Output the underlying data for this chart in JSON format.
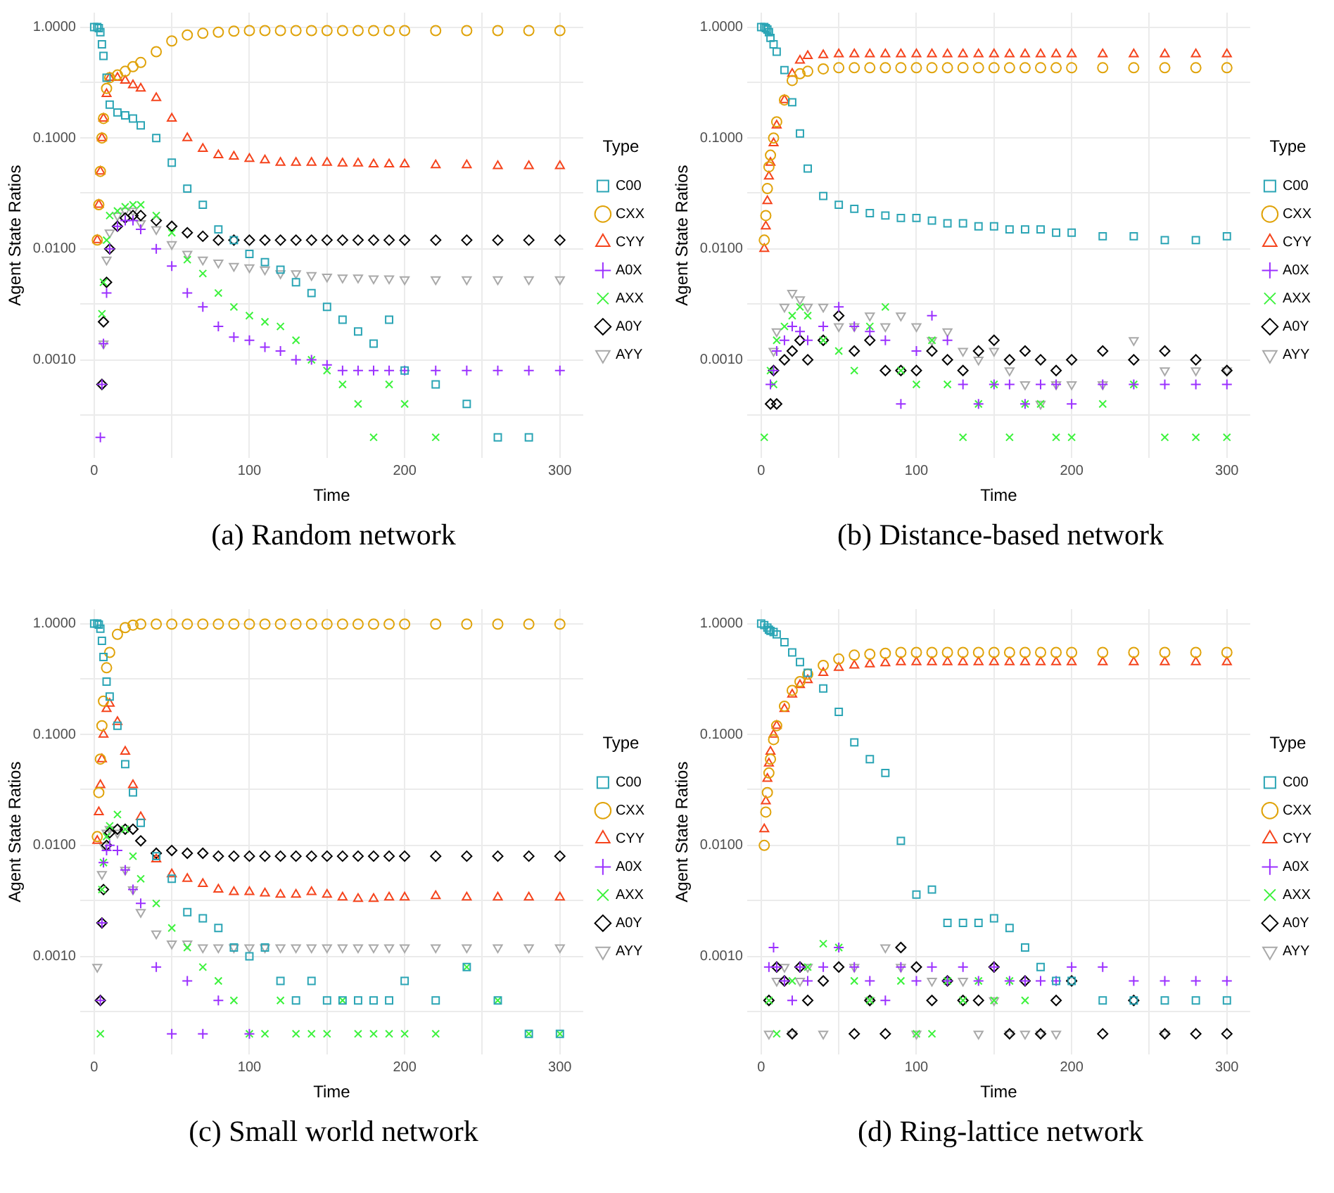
{
  "chart_data": [
    {
      "type": "scatter",
      "title": "(a) Random network",
      "xlabel": "Time",
      "ylabel": "Agent State Ratios",
      "legend_title": "Type",
      "legend": "right",
      "grid": true,
      "log": "y",
      "x": [
        0,
        2,
        3,
        4,
        5,
        6,
        8,
        10,
        15,
        20,
        25,
        30,
        40,
        50,
        60,
        70,
        80,
        90,
        100,
        110,
        120,
        130,
        140,
        150,
        160,
        170,
        180,
        190,
        200,
        220,
        240,
        260,
        280,
        300
      ],
      "xlim": [
        -9,
        315
      ],
      "xticks": [
        0,
        {
          "value": 50,
          "label": null
        },
        100,
        {
          "value": 150,
          "label": null
        },
        200,
        {
          "value": 250,
          "label": null
        },
        300
      ],
      "ylim": [
        0.00013,
        1.35
      ],
      "yticks": [
        {
          "value": 0.00032,
          "label": null
        },
        {
          "value": 0.001,
          "label": "0.0010"
        },
        {
          "value": 0.0032,
          "label": null
        },
        {
          "value": 0.01,
          "label": "0.0100"
        },
        {
          "value": 0.032,
          "label": null
        },
        {
          "value": 0.1,
          "label": "0.1000"
        },
        {
          "value": 0.32,
          "label": null
        },
        {
          "value": 1,
          "label": "1.0000"
        }
      ],
      "series": [
        {
          "name": "C00",
          "color": "#2ba5b5",
          "marker": "square",
          "values": [
            1,
            1,
            0.98,
            0.9,
            0.7,
            0.55,
            0.35,
            0.2,
            0.17,
            0.16,
            0.15,
            0.13,
            0.1,
            0.06,
            0.035,
            0.025,
            0.015,
            0.012,
            0.009,
            0.0076,
            0.0065,
            0.005,
            0.004,
            0.003,
            0.0023,
            0.0018,
            0.0014,
            0.0023,
            0.0008,
            0.0006,
            0.0004,
            0.0002,
            0.0002,
            null
          ]
        },
        {
          "name": "CXX",
          "color": "#e0a30a",
          "marker": "circle",
          "values": [
            null,
            0.012,
            0.025,
            0.05,
            0.1,
            0.15,
            0.28,
            0.35,
            0.37,
            0.4,
            0.44,
            0.48,
            0.6,
            0.75,
            0.85,
            0.88,
            0.9,
            0.92,
            0.93,
            0.93,
            0.93,
            0.93,
            0.93,
            0.93,
            0.93,
            0.93,
            0.93,
            0.93,
            0.93,
            0.93,
            0.93,
            0.93,
            0.93,
            0.93
          ]
        },
        {
          "name": "CYY",
          "color": "#f5441d",
          "marker": "triangle",
          "values": [
            null,
            0.012,
            0.025,
            0.05,
            0.1,
            0.15,
            0.25,
            0.35,
            0.35,
            0.33,
            0.3,
            0.28,
            0.23,
            0.15,
            0.1,
            0.08,
            0.07,
            0.068,
            0.065,
            0.063,
            0.06,
            0.06,
            0.06,
            0.06,
            0.059,
            0.059,
            0.058,
            0.058,
            0.058,
            0.057,
            0.057,
            0.056,
            0.056,
            0.056
          ]
        },
        {
          "name": "A0X",
          "color": "#9b30ff",
          "marker": "cross",
          "values": [
            null,
            null,
            null,
            0.0002,
            0.0006,
            0.0014,
            0.004,
            0.01,
            0.016,
            0.018,
            0.018,
            0.015,
            0.01,
            0.007,
            0.004,
            0.003,
            0.002,
            0.0016,
            0.0015,
            0.0013,
            0.0012,
            0.001,
            0.001,
            0.0009,
            0.0008,
            0.0008,
            0.0008,
            0.0008,
            0.0008,
            0.0008,
            0.0008,
            0.0008,
            0.0008,
            0.0008
          ]
        },
        {
          "name": "AXX",
          "color": "#3df23d",
          "marker": "x",
          "values": [
            null,
            null,
            null,
            null,
            0.0026,
            0.005,
            0.012,
            0.02,
            0.022,
            0.024,
            0.025,
            0.025,
            0.02,
            0.014,
            0.008,
            0.006,
            0.004,
            0.003,
            0.0025,
            0.0022,
            0.002,
            0.0015,
            0.001,
            0.0008,
            0.0006,
            0.0004,
            0.0002,
            0.0006,
            0.0004,
            0.0002,
            null,
            null,
            null,
            null
          ]
        },
        {
          "name": "A0Y",
          "color": "#000000",
          "marker": "diamond",
          "values": [
            null,
            null,
            null,
            null,
            0.0006,
            0.0022,
            0.005,
            0.01,
            0.016,
            0.019,
            0.02,
            0.02,
            0.018,
            0.016,
            0.014,
            0.013,
            0.012,
            0.012,
            0.012,
            0.012,
            0.012,
            0.012,
            0.012,
            0.012,
            0.012,
            0.012,
            0.012,
            0.012,
            0.012,
            0.012,
            0.012,
            0.012,
            0.012,
            0.012
          ]
        },
        {
          "name": "AYY",
          "color": "#a9a9a9",
          "marker": "triangle-down",
          "values": [
            null,
            null,
            null,
            null,
            null,
            0.0014,
            0.008,
            0.014,
            0.02,
            0.022,
            0.022,
            0.017,
            0.015,
            0.011,
            0.009,
            0.008,
            0.0075,
            0.007,
            0.0068,
            0.0065,
            0.006,
            0.006,
            0.0058,
            0.0056,
            0.0055,
            0.0055,
            0.0054,
            0.0054,
            0.0053,
            0.0053,
            0.0053,
            0.0053,
            0.0053,
            0.0053
          ]
        }
      ]
    },
    {
      "type": "scatter",
      "title": "(b) Distance-based network",
      "xlabel": "Time",
      "ylabel": "Agent State Ratios",
      "legend_title": "Type",
      "legend": "right",
      "grid": true,
      "log": "y",
      "x": [
        0,
        2,
        3,
        4,
        5,
        6,
        8,
        10,
        15,
        20,
        25,
        30,
        40,
        50,
        60,
        70,
        80,
        90,
        100,
        110,
        120,
        130,
        140,
        150,
        160,
        170,
        180,
        190,
        200,
        220,
        240,
        260,
        280,
        300
      ],
      "xlim": [
        -9,
        315
      ],
      "xticks": [
        0,
        {
          "value": 50,
          "label": null
        },
        100,
        {
          "value": 150,
          "label": null
        },
        200,
        {
          "value": 250,
          "label": null
        },
        300
      ],
      "ylim": [
        0.00013,
        1.35
      ],
      "yticks": [
        {
          "value": 0.00032,
          "label": null
        },
        {
          "value": 0.001,
          "label": "0.0010"
        },
        {
          "value": 0.0032,
          "label": null
        },
        {
          "value": 0.01,
          "label": "0.0100"
        },
        {
          "value": 0.032,
          "label": null
        },
        {
          "value": 0.1,
          "label": "0.1000"
        },
        {
          "value": 0.32,
          "label": null
        },
        {
          "value": 1,
          "label": "1.0000"
        }
      ],
      "series": [
        {
          "name": "C00",
          "color": "#2ba5b5",
          "marker": "square",
          "values": [
            1,
            1,
            0.98,
            0.95,
            0.9,
            0.8,
            0.7,
            0.6,
            0.41,
            0.21,
            0.11,
            0.053,
            0.03,
            0.025,
            0.023,
            0.021,
            0.02,
            0.019,
            0.019,
            0.018,
            0.017,
            0.017,
            0.016,
            0.016,
            0.015,
            0.015,
            0.015,
            0.014,
            0.014,
            0.013,
            0.013,
            0.012,
            0.012,
            0.013
          ]
        },
        {
          "name": "CXX",
          "color": "#e0a30a",
          "marker": "circle",
          "values": [
            null,
            0.012,
            0.02,
            0.035,
            0.055,
            0.07,
            0.1,
            0.14,
            0.22,
            0.33,
            0.38,
            0.4,
            0.42,
            0.43,
            0.43,
            0.43,
            0.43,
            0.43,
            0.43,
            0.43,
            0.43,
            0.43,
            0.43,
            0.43,
            0.43,
            0.43,
            0.43,
            0.43,
            0.43,
            0.43,
            0.43,
            0.43,
            0.43,
            0.43
          ]
        },
        {
          "name": "CYY",
          "color": "#f5441d",
          "marker": "triangle",
          "values": [
            null,
            0.01,
            0.016,
            0.027,
            0.045,
            0.06,
            0.09,
            0.13,
            0.22,
            0.38,
            0.5,
            0.55,
            0.56,
            0.57,
            0.57,
            0.57,
            0.57,
            0.57,
            0.57,
            0.57,
            0.57,
            0.57,
            0.57,
            0.57,
            0.57,
            0.57,
            0.57,
            0.57,
            0.57,
            0.57,
            0.57,
            0.57,
            0.57,
            0.57
          ]
        },
        {
          "name": "A0X",
          "color": "#9b30ff",
          "marker": "cross",
          "values": [
            null,
            null,
            null,
            null,
            null,
            0.0006,
            0.0008,
            0.0012,
            0.0015,
            0.002,
            0.0018,
            0.0015,
            0.002,
            0.003,
            0.002,
            0.0018,
            0.0015,
            0.0004,
            0.0012,
            0.0025,
            0.0015,
            0.0006,
            0.0004,
            0.0006,
            0.0006,
            0.0004,
            0.0006,
            0.0006,
            0.0004,
            0.0006,
            0.0006,
            0.0006,
            0.0006,
            0.0006
          ]
        },
        {
          "name": "AXX",
          "color": "#3df23d",
          "marker": "x",
          "values": [
            null,
            0.0002,
            null,
            null,
            null,
            0.0008,
            0.0006,
            0.0015,
            0.002,
            0.0025,
            0.003,
            0.0025,
            0.0015,
            0.0012,
            0.0008,
            0.002,
            0.003,
            0.0008,
            0.0006,
            0.0015,
            0.0006,
            0.0002,
            0.0004,
            0.0006,
            0.0002,
            0.0004,
            0.0004,
            0.0002,
            0.0002,
            0.0004,
            0.0006,
            0.0002,
            0.0002,
            0.0002
          ]
        },
        {
          "name": "A0Y",
          "color": "#000000",
          "marker": "diamond",
          "values": [
            null,
            null,
            null,
            null,
            null,
            0.0004,
            0.0008,
            0.0004,
            0.001,
            0.0012,
            0.0015,
            0.001,
            0.0015,
            0.0025,
            0.0012,
            0.0015,
            0.0008,
            0.0008,
            0.0008,
            0.0012,
            0.001,
            0.0008,
            0.0012,
            0.0015,
            0.001,
            0.0012,
            0.001,
            0.0008,
            0.001,
            0.0012,
            0.001,
            0.0012,
            0.001,
            0.0008
          ]
        },
        {
          "name": "AYY",
          "color": "#a9a9a9",
          "marker": "triangle-down",
          "values": [
            null,
            null,
            null,
            null,
            null,
            null,
            0.0012,
            0.0018,
            0.003,
            0.004,
            0.0035,
            0.003,
            0.003,
            0.002,
            0.002,
            0.0025,
            0.002,
            0.0025,
            0.002,
            0.0015,
            0.0018,
            0.0012,
            0.001,
            0.0012,
            0.0008,
            0.0006,
            0.0004,
            0.0006,
            0.0006,
            0.0006,
            0.0015,
            0.0008,
            0.0008,
            0.0008
          ]
        }
      ]
    },
    {
      "type": "scatter",
      "title": "(c) Small world network",
      "xlabel": "Time",
      "ylabel": "Agent State Ratios",
      "legend_title": "Type",
      "legend": "right",
      "grid": true,
      "log": "y",
      "x": [
        0,
        2,
        3,
        4,
        5,
        6,
        8,
        10,
        15,
        20,
        25,
        30,
        40,
        50,
        60,
        70,
        80,
        90,
        100,
        110,
        120,
        130,
        140,
        150,
        160,
        170,
        180,
        190,
        200,
        220,
        240,
        260,
        280,
        300
      ],
      "xlim": [
        -9,
        315
      ],
      "xticks": [
        0,
        {
          "value": 50,
          "label": null
        },
        100,
        {
          "value": 150,
          "label": null
        },
        200,
        {
          "value": 250,
          "label": null
        },
        300
      ],
      "ylim": [
        0.00013,
        1.35
      ],
      "yticks": [
        {
          "value": 0.00032,
          "label": null
        },
        {
          "value": 0.001,
          "label": "0.0010"
        },
        {
          "value": 0.0032,
          "label": null
        },
        {
          "value": 0.01,
          "label": "0.0100"
        },
        {
          "value": 0.032,
          "label": null
        },
        {
          "value": 0.1,
          "label": "0.1000"
        },
        {
          "value": 0.32,
          "label": null
        },
        {
          "value": 1,
          "label": "1.0000"
        }
      ],
      "series": [
        {
          "name": "C00",
          "color": "#2ba5b5",
          "marker": "square",
          "values": [
            1,
            1,
            0.98,
            0.9,
            0.7,
            0.5,
            0.3,
            0.22,
            0.12,
            0.054,
            0.03,
            0.016,
            0.008,
            0.005,
            0.0025,
            0.0022,
            0.0018,
            0.0012,
            0.001,
            0.0012,
            0.0006,
            0.0004,
            0.0006,
            0.0004,
            0.0004,
            0.0004,
            0.0004,
            0.0004,
            0.0006,
            0.0004,
            0.0008,
            0.0004,
            0.0002,
            0.0002
          ]
        },
        {
          "name": "CXX",
          "color": "#e0a30a",
          "marker": "circle",
          "values": [
            null,
            0.012,
            0.03,
            0.06,
            0.12,
            0.2,
            0.4,
            0.55,
            0.8,
            0.92,
            0.97,
            0.99,
            0.99,
            0.99,
            0.99,
            0.99,
            0.99,
            0.99,
            0.99,
            0.99,
            0.99,
            0.99,
            0.99,
            0.99,
            0.99,
            0.99,
            0.99,
            0.99,
            0.99,
            0.99,
            0.99,
            0.99,
            0.99,
            0.99
          ]
        },
        {
          "name": "CYY",
          "color": "#f5441d",
          "marker": "triangle",
          "values": [
            null,
            0.011,
            0.02,
            0.035,
            0.06,
            0.1,
            0.17,
            0.19,
            0.13,
            0.07,
            0.035,
            0.018,
            0.0075,
            0.0055,
            0.005,
            0.0045,
            0.004,
            0.0038,
            0.0038,
            0.0037,
            0.0036,
            0.0036,
            0.0038,
            0.0036,
            0.0034,
            0.0033,
            0.0033,
            0.0034,
            0.0034,
            0.0035,
            0.0034,
            0.0034,
            0.0034,
            0.0034
          ]
        },
        {
          "name": "A0X",
          "color": "#9b30ff",
          "marker": "cross",
          "values": [
            null,
            null,
            null,
            0.0004,
            0.002,
            0.007,
            0.009,
            0.01,
            0.009,
            0.006,
            0.004,
            0.003,
            0.0008,
            0.0002,
            0.0006,
            0.0002,
            0.0004,
            null,
            0.0002,
            null,
            null,
            null,
            null,
            null,
            null,
            null,
            null,
            null,
            null,
            null,
            null,
            null,
            null,
            null
          ]
        },
        {
          "name": "AXX",
          "color": "#3df23d",
          "marker": "x",
          "values": [
            null,
            null,
            null,
            0.0002,
            0.004,
            0.007,
            0.012,
            0.015,
            0.019,
            0.014,
            0.008,
            0.005,
            0.003,
            0.0018,
            0.0012,
            0.0008,
            0.0006,
            0.0004,
            0.0002,
            0.0002,
            0.0004,
            0.0002,
            0.0002,
            0.0002,
            0.0004,
            0.0002,
            0.0002,
            0.0002,
            0.0002,
            0.0002,
            0.0008,
            0.0004,
            0.0002,
            0.0002
          ]
        },
        {
          "name": "A0Y",
          "color": "#000000",
          "marker": "diamond",
          "values": [
            null,
            null,
            null,
            0.0004,
            0.002,
            0.004,
            0.01,
            0.013,
            0.014,
            0.014,
            0.014,
            0.011,
            0.0085,
            0.009,
            0.0085,
            0.0085,
            0.008,
            0.008,
            0.008,
            0.008,
            0.008,
            0.008,
            0.008,
            0.008,
            0.008,
            0.008,
            0.008,
            0.008,
            0.008,
            0.008,
            0.008,
            0.008,
            0.008,
            0.008
          ]
        },
        {
          "name": "AYY",
          "color": "#a9a9a9",
          "marker": "triangle-down",
          "values": [
            null,
            0.0008,
            null,
            null,
            0.0055,
            0.01,
            0.013,
            0.014,
            0.013,
            0.006,
            0.004,
            0.0025,
            0.0016,
            0.0013,
            0.0013,
            0.0012,
            0.0012,
            0.0012,
            0.0012,
            0.0012,
            0.0012,
            0.0012,
            0.0012,
            0.0012,
            0.0012,
            0.0012,
            0.0012,
            0.0012,
            0.0012,
            0.0012,
            0.0012,
            0.0012,
            0.0012,
            0.0012
          ]
        }
      ]
    },
    {
      "type": "scatter",
      "title": "(d) Ring-lattice network",
      "xlabel": "Time",
      "ylabel": "Agent State Ratios",
      "legend_title": "Type",
      "legend": "right",
      "grid": true,
      "log": "y",
      "x": [
        0,
        2,
        3,
        4,
        5,
        6,
        8,
        10,
        15,
        20,
        25,
        30,
        40,
        50,
        60,
        70,
        80,
        90,
        100,
        110,
        120,
        130,
        140,
        150,
        160,
        170,
        180,
        190,
        200,
        220,
        240,
        260,
        280,
        300
      ],
      "xlim": [
        -9,
        315
      ],
      "xticks": [
        0,
        {
          "value": 50,
          "label": null
        },
        100,
        {
          "value": 150,
          "label": null
        },
        200,
        {
          "value": 250,
          "label": null
        },
        300
      ],
      "ylim": [
        0.00013,
        1.35
      ],
      "yticks": [
        {
          "value": 0.00032,
          "label": null
        },
        {
          "value": 0.001,
          "label": "0.0010"
        },
        {
          "value": 0.0032,
          "label": null
        },
        {
          "value": 0.01,
          "label": "0.0100"
        },
        {
          "value": 0.032,
          "label": null
        },
        {
          "value": 0.1,
          "label": "0.1000"
        },
        {
          "value": 0.32,
          "label": null
        },
        {
          "value": 1,
          "label": "1.0000"
        }
      ],
      "series": [
        {
          "name": "C00",
          "color": "#2ba5b5",
          "marker": "square",
          "values": [
            1,
            0.97,
            null,
            0.92,
            0.88,
            0.86,
            0.84,
            0.8,
            0.68,
            0.55,
            0.45,
            0.36,
            0.26,
            0.16,
            0.085,
            0.06,
            0.045,
            0.011,
            0.0036,
            0.004,
            0.002,
            0.002,
            0.002,
            0.0022,
            0.0018,
            0.0012,
            0.0008,
            0.0006,
            0.0006,
            0.0004,
            0.0004,
            0.0004,
            0.0004,
            0.0004
          ]
        },
        {
          "name": "CXX",
          "color": "#e0a30a",
          "marker": "circle",
          "values": [
            null,
            0.01,
            0.02,
            0.03,
            0.045,
            0.06,
            0.09,
            0.12,
            0.18,
            0.25,
            0.3,
            0.35,
            0.42,
            0.48,
            0.52,
            0.53,
            0.54,
            0.55,
            0.55,
            0.55,
            0.55,
            0.55,
            0.55,
            0.55,
            0.55,
            0.55,
            0.55,
            0.55,
            0.55,
            0.55,
            0.55,
            0.55,
            0.55,
            0.55
          ]
        },
        {
          "name": "CYY",
          "color": "#f5441d",
          "marker": "triangle",
          "values": [
            null,
            0.014,
            0.025,
            0.04,
            0.055,
            0.07,
            0.1,
            0.12,
            0.17,
            0.23,
            0.28,
            0.31,
            0.36,
            0.4,
            0.42,
            0.43,
            0.44,
            0.45,
            0.45,
            0.45,
            0.45,
            0.45,
            0.45,
            0.45,
            0.45,
            0.45,
            0.45,
            0.45,
            0.45,
            0.45,
            0.45,
            0.45,
            0.45,
            0.45
          ]
        },
        {
          "name": "A0X",
          "color": "#9b30ff",
          "marker": "cross",
          "values": [
            null,
            null,
            null,
            null,
            0.0008,
            null,
            0.0012,
            0.0008,
            0.0006,
            0.0004,
            0.0008,
            0.0006,
            0.0008,
            0.0012,
            0.0008,
            0.0006,
            0.0004,
            0.0008,
            0.0006,
            0.0008,
            0.0006,
            0.0008,
            0.0006,
            0.0008,
            0.0006,
            0.0006,
            0.0006,
            0.0006,
            0.0008,
            0.0008,
            0.0006,
            0.0006,
            0.0006,
            0.0006
          ]
        },
        {
          "name": "AXX",
          "color": "#3df23d",
          "marker": "x",
          "values": [
            null,
            null,
            null,
            null,
            0.0004,
            null,
            null,
            0.0002,
            null,
            0.0006,
            null,
            0.0008,
            0.0013,
            0.0012,
            0.0006,
            0.0004,
            null,
            0.0006,
            0.0002,
            0.0002,
            0.0006,
            0.0004,
            0.0006,
            0.0004,
            0.0006,
            0.0004,
            null,
            null,
            null,
            null,
            null,
            null,
            null,
            null
          ]
        },
        {
          "name": "A0Y",
          "color": "#000000",
          "marker": "diamond",
          "values": [
            null,
            null,
            null,
            null,
            0.0004,
            null,
            null,
            0.0008,
            0.0006,
            0.0002,
            0.0008,
            0.0004,
            0.0006,
            0.0008,
            0.0002,
            0.0004,
            0.0002,
            0.0012,
            0.0008,
            0.0004,
            0.0006,
            0.0004,
            0.0004,
            0.0008,
            0.0002,
            0.0006,
            0.0002,
            0.0004,
            0.0006,
            0.0002,
            0.0004,
            0.0002,
            0.0002,
            0.0002
          ]
        },
        {
          "name": "AYY",
          "color": "#a9a9a9",
          "marker": "triangle-down",
          "values": [
            null,
            null,
            null,
            null,
            0.0002,
            null,
            null,
            0.0006,
            0.0008,
            0.0002,
            0.0006,
            0.0008,
            0.0002,
            null,
            0.0008,
            0.0004,
            0.0012,
            0.0008,
            0.0002,
            0.0006,
            null,
            0.0006,
            0.0002,
            0.0004,
            0.0002,
            0.0002,
            0.0002,
            0.0002,
            null,
            null,
            null,
            0.0002,
            null,
            null
          ]
        }
      ]
    }
  ]
}
